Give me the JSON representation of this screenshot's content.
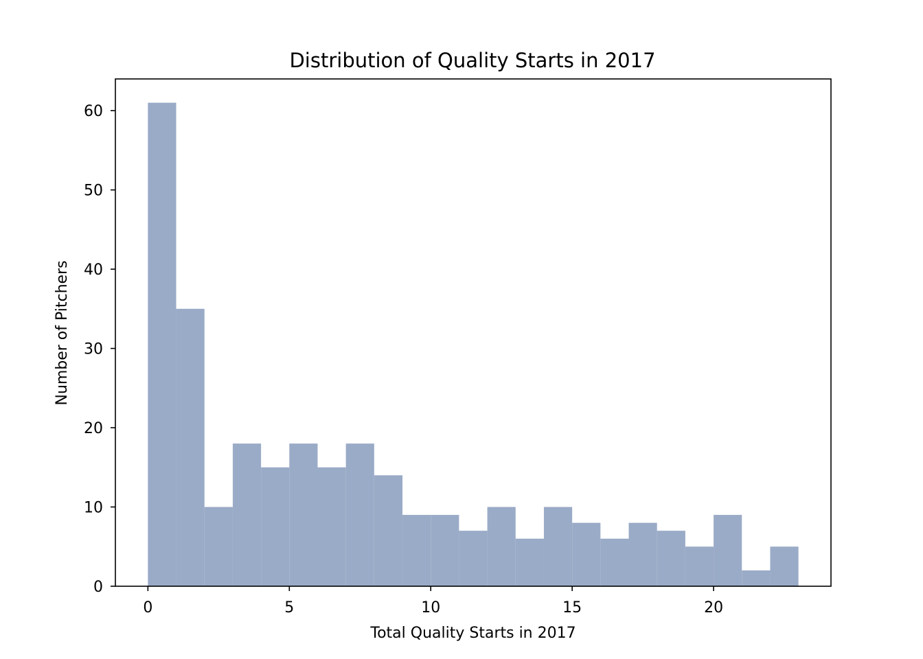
{
  "chart_data": {
    "type": "bar",
    "subtype": "histogram",
    "title": "Distribution of Quality Starts in 2017",
    "xlabel": "Total Quality Starts in 2017",
    "ylabel": "Number of Pitchers",
    "bins": [
      {
        "x_start": 0,
        "x_end": 1,
        "count": 61
      },
      {
        "x_start": 1,
        "x_end": 2,
        "count": 35
      },
      {
        "x_start": 2,
        "x_end": 3,
        "count": 10
      },
      {
        "x_start": 3,
        "x_end": 4,
        "count": 18
      },
      {
        "x_start": 4,
        "x_end": 5,
        "count": 15
      },
      {
        "x_start": 5,
        "x_end": 6,
        "count": 18
      },
      {
        "x_start": 6,
        "x_end": 7,
        "count": 15
      },
      {
        "x_start": 7,
        "x_end": 8,
        "count": 18
      },
      {
        "x_start": 8,
        "x_end": 9,
        "count": 14
      },
      {
        "x_start": 9,
        "x_end": 10,
        "count": 9
      },
      {
        "x_start": 10,
        "x_end": 11,
        "count": 9
      },
      {
        "x_start": 11,
        "x_end": 12,
        "count": 7
      },
      {
        "x_start": 12,
        "x_end": 13,
        "count": 10
      },
      {
        "x_start": 13,
        "x_end": 14,
        "count": 6
      },
      {
        "x_start": 14,
        "x_end": 15,
        "count": 10
      },
      {
        "x_start": 15,
        "x_end": 16,
        "count": 8
      },
      {
        "x_start": 16,
        "x_end": 17,
        "count": 6
      },
      {
        "x_start": 17,
        "x_end": 18,
        "count": 8
      },
      {
        "x_start": 18,
        "x_end": 19,
        "count": 7
      },
      {
        "x_start": 19,
        "x_end": 20,
        "count": 5
      },
      {
        "x_start": 20,
        "x_end": 21,
        "count": 9
      },
      {
        "x_start": 21,
        "x_end": 22,
        "count": 2
      },
      {
        "x_start": 22,
        "x_end": 23,
        "count": 5
      }
    ],
    "xlim": [
      -1.15,
      24.15
    ],
    "ylim": [
      0,
      64
    ],
    "xticks": [
      0,
      5,
      10,
      15,
      20
    ],
    "yticks": [
      0,
      10,
      20,
      30,
      40,
      50,
      60
    ],
    "grid": false,
    "legend": "none",
    "bar_color": "#9aabc7"
  }
}
